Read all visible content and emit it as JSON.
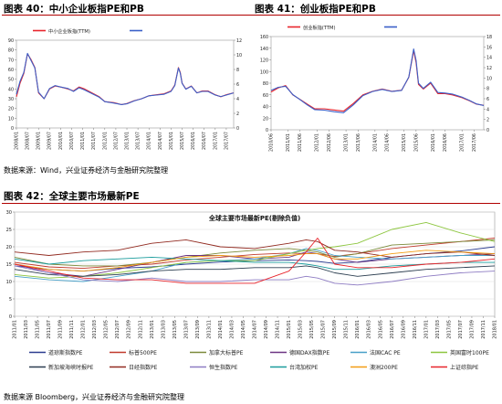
{
  "captions": {
    "fig40": "图表 40：中小企业板指PE和PB",
    "fig41": "图表 41：创业板指PE和PB",
    "fig42": "图表 42：全球主要市场最新PE"
  },
  "sources": {
    "top": "数据来源：Wind，兴业证券经济与金融研究院整理",
    "bottom": "数据来源 Bloomberg，兴业证券经济与金融研究院整理"
  },
  "chart_data": [
    {
      "id": "fig40",
      "type": "line",
      "title": "",
      "x_start": "2008/01",
      "x_end": "2017/11",
      "xticks": [
        "2008/01",
        "2008/07",
        "2009/01",
        "2009/07",
        "2010/01",
        "2010/07",
        "2011/01",
        "2011/07",
        "2012/01",
        "2012/07",
        "2013/01",
        "2013/07",
        "2014/01",
        "2014/07",
        "2015/01",
        "2015/07",
        "2016/01",
        "2016/07",
        "2017/01",
        "2017/07"
      ],
      "ylim": [
        0,
        90
      ],
      "yticks": [
        0,
        10,
        20,
        30,
        40,
        50,
        60,
        70,
        80,
        90
      ],
      "y2lim": [
        0,
        12
      ],
      "y2ticks": [
        0,
        2,
        4,
        6,
        8,
        10,
        12
      ],
      "legend_position": "top",
      "series": [
        {
          "name": "中小企业板指(TTM)",
          "color": "#e8242b",
          "axis": "left",
          "x": [
            "2008/01",
            "2008/03",
            "2008/05",
            "2008/07",
            "2008/09",
            "2008/11",
            "2009/01",
            "2009/04",
            "2009/07",
            "2009/10",
            "2010/01",
            "2010/05",
            "2010/08",
            "2010/11",
            "2011/02",
            "2011/06",
            "2011/10",
            "2012/01",
            "2012/06",
            "2012/10",
            "2013/01",
            "2013/05",
            "2013/09",
            "2014/01",
            "2014/05",
            "2014/09",
            "2015/01",
            "2015/03",
            "2015/05",
            "2015/06",
            "2015/07",
            "2015/09",
            "2015/12",
            "2016/03",
            "2016/06",
            "2016/09",
            "2017/01",
            "2017/04",
            "2017/07",
            "2017/11"
          ],
          "values": [
            32,
            46,
            56,
            76,
            70,
            62,
            36,
            30,
            40,
            43,
            42,
            40,
            38,
            42,
            40,
            36,
            32,
            27,
            26,
            24,
            25,
            28,
            30,
            33,
            34,
            35,
            38,
            44,
            62,
            57,
            46,
            40,
            43,
            36,
            38,
            38,
            34,
            32,
            34,
            36
          ]
        },
        {
          "name": "",
          "color": "#3a5fc8",
          "axis": "right",
          "x": [
            "2008/01",
            "2008/03",
            "2008/05",
            "2008/07",
            "2008/09",
            "2008/11",
            "2009/01",
            "2009/04",
            "2009/07",
            "2009/10",
            "2010/01",
            "2010/05",
            "2010/08",
            "2010/11",
            "2011/02",
            "2011/06",
            "2011/10",
            "2012/01",
            "2012/06",
            "2012/10",
            "2013/01",
            "2013/05",
            "2013/09",
            "2014/01",
            "2014/05",
            "2014/09",
            "2015/01",
            "2015/03",
            "2015/05",
            "2015/06",
            "2015/07",
            "2015/09",
            "2015/12",
            "2016/03",
            "2016/06",
            "2016/09",
            "2017/01",
            "2017/04",
            "2017/07",
            "2017/11"
          ],
          "values": [
            4.6,
            6.4,
            7.6,
            10.2,
            9.2,
            8.2,
            4.9,
            4.0,
            5.4,
            5.8,
            5.6,
            5.4,
            5.0,
            5.5,
            5.2,
            4.7,
            4.2,
            3.6,
            3.4,
            3.2,
            3.3,
            3.7,
            4.0,
            4.4,
            4.5,
            4.6,
            5.0,
            5.8,
            8.2,
            7.5,
            6.1,
            5.3,
            5.7,
            4.8,
            5.0,
            5.0,
            4.5,
            4.3,
            4.5,
            4.8
          ]
        }
      ]
    },
    {
      "id": "fig41",
      "type": "line",
      "title": "",
      "x_start": "2010/06",
      "x_end": "2017/10",
      "xticks": [
        "2010/06",
        "2011/01",
        "2011/06",
        "2012/01",
        "2012/06",
        "2013/01",
        "2013/06",
        "2014/01",
        "2014/06",
        "2015/01",
        "2015/06",
        "2016/01",
        "2016/06",
        "2017/01",
        "2017/06"
      ],
      "ylim": [
        0,
        160
      ],
      "yticks": [
        0,
        20,
        40,
        60,
        80,
        100,
        120,
        140,
        160
      ],
      "y2lim": [
        0,
        18
      ],
      "y2ticks": [
        0,
        2,
        4,
        6,
        8,
        10,
        12,
        14,
        16,
        18
      ],
      "legend_position": "top",
      "series": [
        {
          "name": "创业板指(TTM)",
          "color": "#e8242b",
          "axis": "left",
          "x": [
            "2010/06",
            "2010/09",
            "2010/12",
            "2011/03",
            "2011/06",
            "2011/09",
            "2011/12",
            "2012/04",
            "2012/08",
            "2012/12",
            "2013/04",
            "2013/08",
            "2013/12",
            "2014/04",
            "2014/08",
            "2014/12",
            "2015/03",
            "2015/05",
            "2015/06",
            "2015/07",
            "2015/09",
            "2015/12",
            "2016/03",
            "2016/06",
            "2016/09",
            "2017/01",
            "2017/04",
            "2017/07",
            "2017/10"
          ],
          "values": [
            65,
            72,
            76,
            60,
            52,
            44,
            36,
            36,
            34,
            32,
            45,
            60,
            66,
            70,
            66,
            68,
            90,
            136,
            115,
            78,
            70,
            80,
            62,
            62,
            60,
            55,
            50,
            44,
            42
          ]
        },
        {
          "name": "",
          "color": "#3a5fc8",
          "axis": "right",
          "x": [
            "2010/06",
            "2010/09",
            "2010/12",
            "2011/03",
            "2011/06",
            "2011/09",
            "2011/12",
            "2012/04",
            "2012/08",
            "2012/12",
            "2013/04",
            "2013/08",
            "2013/12",
            "2014/04",
            "2014/08",
            "2014/12",
            "2015/03",
            "2015/05",
            "2015/06",
            "2015/07",
            "2015/09",
            "2015/12",
            "2016/03",
            "2016/06",
            "2016/09",
            "2017/01",
            "2017/04",
            "2017/07",
            "2017/10"
          ],
          "values": [
            7.6,
            8.2,
            8.4,
            6.8,
            5.8,
            4.8,
            3.9,
            3.8,
            3.5,
            3.3,
            4.8,
            6.6,
            7.4,
            7.8,
            7.4,
            7.6,
            10.2,
            15.6,
            13.4,
            9.0,
            8.0,
            9.2,
            7.2,
            7.1,
            6.9,
            6.3,
            5.7,
            5.0,
            4.7
          ]
        }
      ]
    },
    {
      "id": "fig42",
      "type": "line",
      "title": "全球主要市场最新PE(剔除负值)",
      "x_start": "2011/01",
      "x_end": "2018/01",
      "xticks": [
        "2011/01",
        "2011/03",
        "2011/05",
        "2011/07",
        "2011/09",
        "2011/11",
        "2012/01",
        "2012/03",
        "2012/05",
        "2012/07",
        "2012/09",
        "2012/11",
        "2013/01",
        "2013/03",
        "2013/05",
        "2013/07",
        "2013/09",
        "2013/11",
        "2014/01",
        "2014/03",
        "2014/05",
        "2014/07",
        "2014/09",
        "2014/11",
        "2015/01",
        "2015/03",
        "2015/05",
        "2015/07",
        "2015/09",
        "2015/11",
        "2016/01",
        "2016/03",
        "2016/05",
        "2016/07",
        "2016/09",
        "2016/11",
        "2017/01",
        "2017/03",
        "2017/05",
        "2017/07",
        "2017/09",
        "2017/11",
        "2018/01"
      ],
      "ylim": [
        0,
        30
      ],
      "yticks": [
        0,
        5,
        10,
        15,
        20,
        25,
        30
      ],
      "legend_position": "bottom",
      "x": [
        "2011/01",
        "2011/07",
        "2012/01",
        "2012/07",
        "2013/01",
        "2013/07",
        "2014/01",
        "2014/07",
        "2015/01",
        "2015/04",
        "2015/06",
        "2015/09",
        "2016/01",
        "2016/07",
        "2017/01",
        "2017/07",
        "2018/01"
      ],
      "series": [
        {
          "name": "道琼斯指数PE",
          "color": "#2b3c8f",
          "values": [
            14.5,
            13.5,
            13.0,
            13.8,
            14.2,
            15.0,
            15.6,
            16.0,
            16.2,
            16.0,
            15.8,
            15.2,
            15.6,
            17.0,
            18.0,
            18.8,
            20.0
          ]
        },
        {
          "name": "标普500PE",
          "color": "#c0392b",
          "values": [
            15.5,
            14.2,
            13.8,
            14.5,
            15.0,
            16.2,
            17.0,
            17.8,
            18.2,
            18.0,
            18.0,
            17.2,
            18.0,
            19.5,
            20.5,
            21.5,
            22.5
          ]
        },
        {
          "name": "加拿大标普PE",
          "color": "#7b8a3a",
          "values": [
            17.0,
            15.0,
            14.5,
            14.5,
            15.5,
            17.0,
            18.2,
            19.0,
            19.5,
            19.0,
            18.5,
            17.0,
            18.0,
            20.5,
            21.0,
            21.5,
            22.0
          ]
        },
        {
          "name": "德国DAX指数PE",
          "color": "#6c3483",
          "values": [
            15.0,
            12.5,
            11.5,
            13.5,
            15.5,
            17.5,
            17.5,
            16.5,
            17.0,
            18.5,
            18.0,
            16.5,
            15.5,
            16.5,
            17.0,
            17.5,
            18.0
          ]
        },
        {
          "name": "法国CAC PE",
          "color": "#48a0c8",
          "values": [
            11.5,
            10.5,
            10.0,
            11.5,
            13.0,
            15.5,
            16.0,
            16.5,
            18.0,
            19.5,
            19.0,
            17.5,
            17.0,
            16.5,
            17.0,
            17.5,
            17.5
          ]
        },
        {
          "name": "英国富时100PE",
          "color": "#8dc63f",
          "values": [
            12.0,
            11.0,
            11.5,
            12.5,
            14.0,
            15.5,
            16.0,
            16.0,
            18.0,
            19.0,
            19.5,
            20.0,
            21.0,
            25.0,
            27.0,
            24.0,
            21.5
          ]
        },
        {
          "name": "新加坡海峡时报PE",
          "color": "#2c3e50",
          "values": [
            13.5,
            12.0,
            11.5,
            12.0,
            13.0,
            13.5,
            13.5,
            14.0,
            14.0,
            14.5,
            14.0,
            12.5,
            11.5,
            12.5,
            13.5,
            14.0,
            14.5
          ]
        },
        {
          "name": "日经指数PE",
          "color": "#922b21",
          "values": [
            18.5,
            17.5,
            18.5,
            19.0,
            21.0,
            22.0,
            20.0,
            19.5,
            21.0,
            22.0,
            21.5,
            19.0,
            18.5,
            17.0,
            18.0,
            18.5,
            17.5
          ]
        },
        {
          "name": "恒生指数PE",
          "color": "#8e7cc3",
          "values": [
            14.5,
            12.5,
            10.5,
            10.0,
            11.0,
            10.0,
            10.0,
            10.5,
            10.5,
            11.5,
            11.0,
            9.5,
            9.0,
            10.0,
            11.5,
            12.5,
            13.0
          ]
        },
        {
          "name": "台湾加权PE",
          "color": "#1a9c9c",
          "values": [
            16.5,
            15.0,
            16.0,
            16.5,
            17.0,
            16.5,
            16.0,
            15.5,
            15.5,
            15.0,
            14.5,
            13.5,
            13.5,
            14.5,
            15.0,
            15.5,
            15.5
          ]
        },
        {
          "name": "澳洲200PE",
          "color": "#f39c12",
          "values": [
            15.0,
            13.5,
            13.0,
            14.0,
            15.5,
            17.0,
            17.5,
            17.0,
            17.5,
            18.0,
            18.0,
            16.5,
            16.5,
            18.0,
            19.0,
            18.5,
            18.0
          ]
        },
        {
          "name": "上证综指PE",
          "color": "#e8242b",
          "values": [
            15.0,
            13.0,
            11.0,
            10.5,
            10.5,
            9.5,
            9.5,
            9.5,
            13.0,
            18.5,
            22.5,
            15.0,
            14.0,
            14.0,
            15.0,
            15.5,
            16.5
          ]
        }
      ]
    }
  ]
}
